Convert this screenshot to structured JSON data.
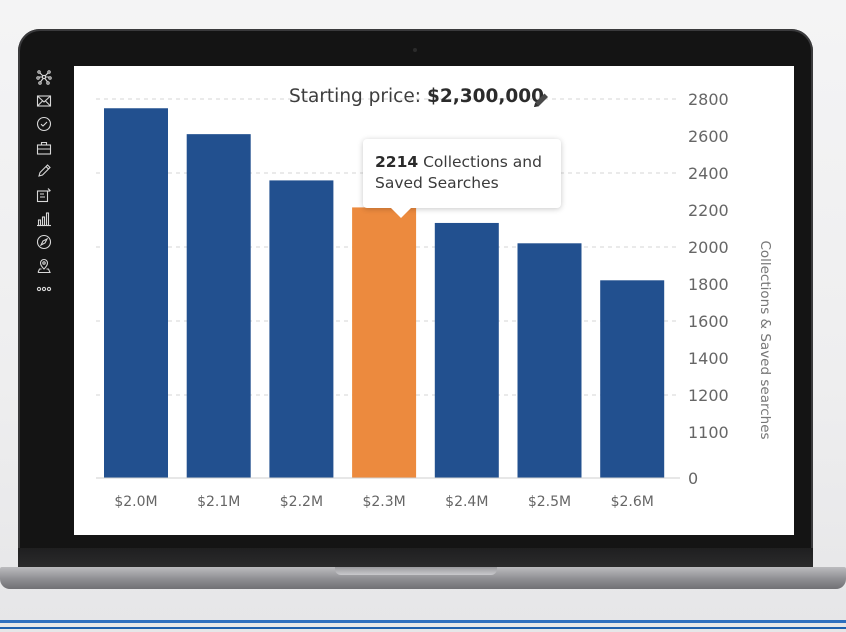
{
  "header": {
    "label": "Starting price:",
    "value": "$2,300,000",
    "edit_icon": "pencil-icon"
  },
  "sidebar": {
    "icons": [
      "network-icon",
      "mail-icon",
      "check-circle-icon",
      "briefcase-icon",
      "pencil-icon",
      "edit-square-icon",
      "bar-chart-icon",
      "compass-icon",
      "map-pin-icon",
      "more-icon"
    ]
  },
  "tooltip": {
    "value": "2214",
    "text": "Collections and Saved Searches"
  },
  "colors": {
    "bar": "#22508f",
    "highlight": "#ec8a3e",
    "grid": "#d6d6d6",
    "axis_text": "#666666"
  },
  "chart_data": {
    "type": "bar",
    "categories": [
      "$2.0M",
      "$2.1M",
      "$2.2M",
      "$2.3M",
      "$2.4M",
      "$2.5M",
      "$2.6M"
    ],
    "values": [
      2750,
      2610,
      2360,
      2214,
      2130,
      2020,
      1820
    ],
    "highlight_index": 3,
    "ylabel": "Collections & Saved searches",
    "y_ticks": [
      0,
      1100,
      1200,
      1400,
      1600,
      1800,
      2000,
      2200,
      2400,
      2600,
      2800
    ],
    "y_axis_side": "right",
    "grid": true
  }
}
